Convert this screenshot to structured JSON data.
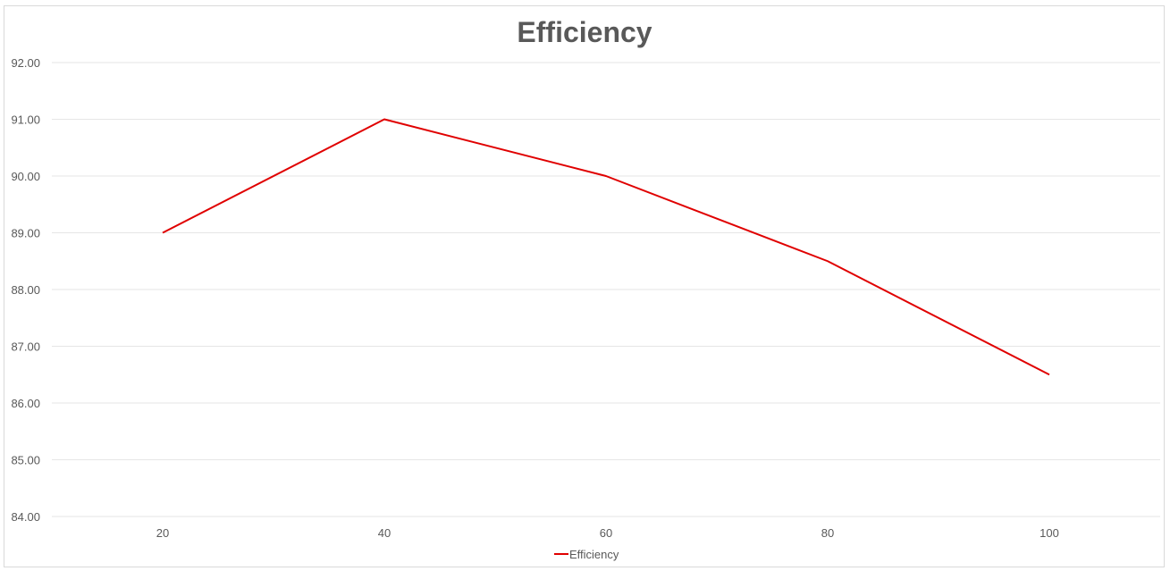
{
  "chart_data": {
    "type": "line",
    "title": "Efficiency",
    "xlabel": "",
    "ylabel": "",
    "categories": [
      "20",
      "40",
      "60",
      "80",
      "100"
    ],
    "series": [
      {
        "name": "Efficiency",
        "values": [
          89.0,
          91.0,
          90.0,
          88.5,
          86.5
        ],
        "color": "#e00000"
      }
    ],
    "ylim": [
      84.0,
      92.0
    ],
    "ytick_step": 1.0,
    "y_tick_labels": [
      "84.00",
      "85.00",
      "86.00",
      "87.00",
      "88.00",
      "89.00",
      "90.00",
      "91.00",
      "92.00"
    ],
    "grid": "horizontal",
    "legend_position": "bottom"
  },
  "colors": {
    "gridline": "#e6e6e6",
    "text": "#595959",
    "border": "#d9d9d9"
  }
}
